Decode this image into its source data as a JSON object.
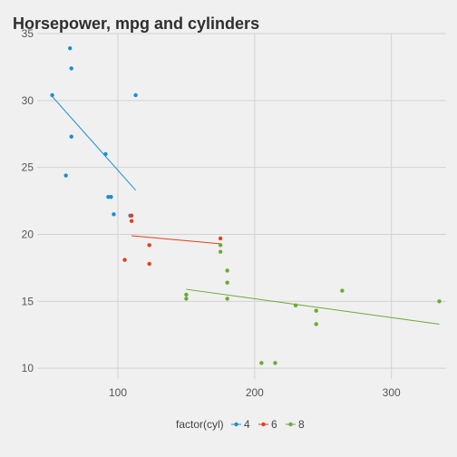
{
  "chart_data": {
    "type": "scatter",
    "title": "Horsepower, mpg and cylinders",
    "xlabel": "",
    "ylabel": "",
    "xlim": [
      41,
      340
    ],
    "ylim": [
      9.2,
      35
    ],
    "x_ticks": [
      100,
      200,
      300
    ],
    "y_ticks": [
      10,
      15,
      20,
      25,
      30,
      35
    ],
    "x_tick_labels": [
      "100",
      "200",
      "300"
    ],
    "y_tick_labels": [
      "10",
      "15",
      "20",
      "25",
      "30",
      "35"
    ],
    "grid": true,
    "legend": {
      "title": "factor(cyl)",
      "position": "bottom"
    },
    "series": [
      {
        "name": "4",
        "color": "#1b8ecf",
        "points": [
          [
            52,
            30.4
          ],
          [
            62,
            24.4
          ],
          [
            65,
            33.9
          ],
          [
            66,
            32.4
          ],
          [
            66,
            27.3
          ],
          [
            91,
            26.0
          ],
          [
            93,
            22.8
          ],
          [
            95,
            22.8
          ],
          [
            97,
            21.5
          ],
          [
            109,
            21.4
          ],
          [
            113,
            30.4
          ]
        ],
        "fit_line": [
          [
            52,
            30.3
          ],
          [
            113,
            23.3
          ]
        ]
      },
      {
        "name": "6",
        "color": "#e0401c",
        "points": [
          [
            105,
            18.1
          ],
          [
            110,
            21.0
          ],
          [
            110,
            21.4
          ],
          [
            123,
            19.2
          ],
          [
            123,
            17.8
          ],
          [
            175,
            19.7
          ]
        ],
        "fit_line": [
          [
            110,
            19.9
          ],
          [
            175,
            19.3
          ]
        ]
      },
      {
        "name": "8",
        "color": "#6aaa34",
        "points": [
          [
            150,
            15.5
          ],
          [
            150,
            15.2
          ],
          [
            175,
            18.7
          ],
          [
            175,
            19.2
          ],
          [
            180,
            16.4
          ],
          [
            180,
            17.3
          ],
          [
            180,
            15.2
          ],
          [
            205,
            10.4
          ],
          [
            215,
            10.4
          ],
          [
            230,
            14.7
          ],
          [
            245,
            14.3
          ],
          [
            245,
            13.3
          ],
          [
            264,
            15.8
          ],
          [
            335,
            15.0
          ]
        ],
        "fit_line": [
          [
            150,
            15.9
          ],
          [
            335,
            13.3
          ]
        ]
      }
    ]
  }
}
